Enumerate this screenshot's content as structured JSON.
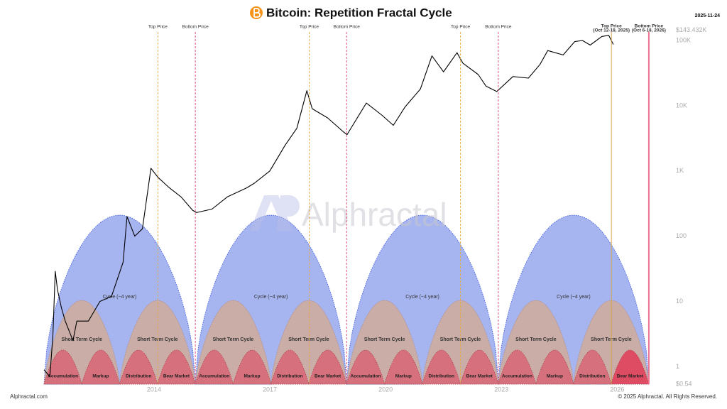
{
  "chart_data": {
    "type": "line",
    "title": "Bitcoin: Repetition Fractal Cycle",
    "date": "2025-11-24",
    "watermark": "Alphractal",
    "log_scale": true,
    "xlim": [
      2011.15,
      2027.3
    ],
    "xticks": [
      2014,
      2017,
      2020,
      2023,
      2026
    ],
    "ylim": [
      0.54,
      143432
    ],
    "yticks": [
      {
        "value": 143432,
        "label": "$143.432K"
      },
      {
        "value": 100000,
        "label": "100K"
      },
      {
        "value": 10000,
        "label": "10K"
      },
      {
        "value": 1000,
        "label": "1K"
      },
      100,
      10,
      1,
      {
        "value": 0.54,
        "label": "$0.54"
      }
    ],
    "x": [
      2011.15,
      2011.3,
      2011.38,
      2011.44,
      2011.5,
      2011.6,
      2011.7,
      2011.9,
      2012.0,
      2012.3,
      2012.6,
      2012.9,
      2013.2,
      2013.3,
      2013.5,
      2013.7,
      2013.92,
      2014.1,
      2014.4,
      2014.7,
      2015.0,
      2015.1,
      2015.5,
      2015.9,
      2016.4,
      2016.6,
      2017.0,
      2017.4,
      2017.7,
      2017.96,
      2018.1,
      2018.5,
      2018.9,
      2019.0,
      2019.5,
      2019.9,
      2020.2,
      2020.5,
      2020.9,
      2021.2,
      2021.5,
      2021.85,
      2022.0,
      2022.4,
      2022.6,
      2022.88,
      2023.3,
      2023.7,
      2024.0,
      2024.2,
      2024.6,
      2024.9,
      2025.1,
      2025.3,
      2025.6,
      2025.78,
      2025.9
    ],
    "series": [
      {
        "color": "#000000",
        "values": [
          0.9,
          0.7,
          3,
          29,
          15,
          8,
          5,
          2.5,
          5,
          5,
          10,
          12,
          40,
          200,
          100,
          130,
          1100,
          800,
          550,
          400,
          250,
          230,
          260,
          400,
          550,
          650,
          1000,
          2500,
          4500,
          17000,
          9000,
          6500,
          4000,
          3600,
          11000,
          7200,
          5000,
          9500,
          18000,
          58000,
          33000,
          65000,
          45000,
          30000,
          20000,
          16500,
          28000,
          26500,
          43000,
          70000,
          60000,
          96000,
          100000,
          85000,
          115000,
          120000,
          87000
        ]
      }
    ],
    "markers": [
      {
        "label": "Top Price",
        "x": 2014.1,
        "color": "#e8a838"
      },
      {
        "label": "Bottom Price",
        "x": 2015.07,
        "color": "#e0406a"
      },
      {
        "label": "Top Price",
        "x": 2018.02,
        "color": "#e8a838"
      },
      {
        "label": "Bottom Price",
        "x": 2018.99,
        "color": "#e0406a"
      },
      {
        "label": "Top Price",
        "x": 2021.94,
        "color": "#e8a838"
      },
      {
        "label": "Bottom Price",
        "x": 2022.92,
        "color": "#e0406a"
      },
      {
        "label": "Top Price",
        "note": "(Oct 12-18, 2025)",
        "x": 2025.85,
        "color": "#d8a040"
      },
      {
        "label": "Bottom Price",
        "note": "(Oct 6-18, 2026)",
        "x": 2026.82,
        "color": "#f07090"
      }
    ],
    "cycles": {
      "bounds": [
        2011.15,
        2015.07,
        2018.99,
        2022.92,
        2026.82
      ],
      "label": "Cycle (~4 year)",
      "short_label": "Short Term Cycle",
      "phases": [
        "Accumulation",
        "Markup",
        "Distribution",
        "Bear Market"
      ]
    },
    "footer_left": "Alphractal.com",
    "footer_right": "© 2025 Alphractal. All Rights Reserved."
  }
}
